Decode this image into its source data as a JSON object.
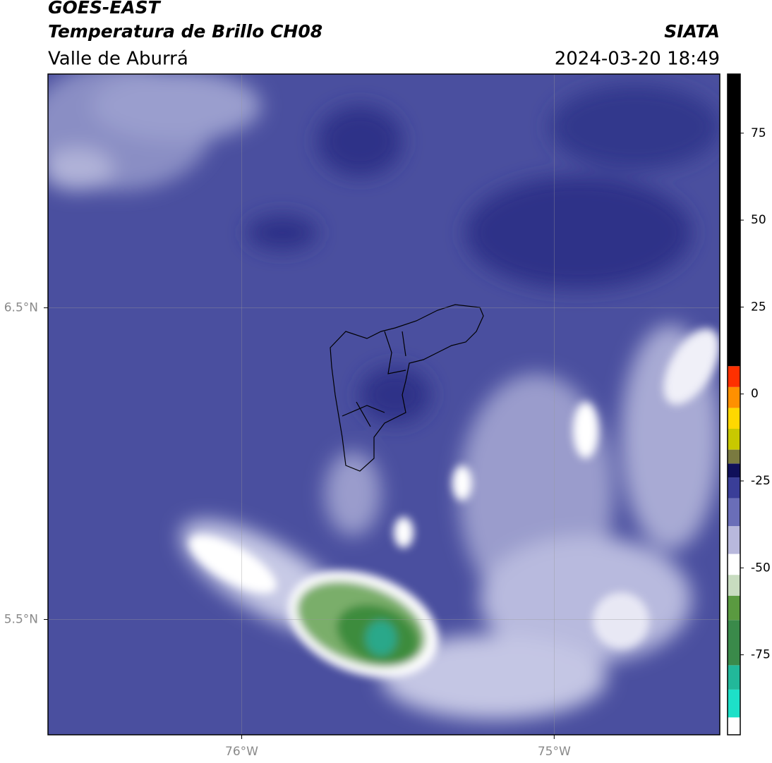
{
  "header": {
    "title": "GOES-EAST",
    "subtitle": "Temperatura de Brillo CH08",
    "region": "Valle de Aburrá",
    "source": "SIATA",
    "datetime": "2024-03-20 18:49"
  },
  "map": {
    "xlim": [
      -76.62,
      -74.47
    ],
    "ylim": [
      5.13,
      7.25
    ],
    "xticks": [
      {
        "value": -76,
        "label": "76°W"
      },
      {
        "value": -75,
        "label": "75°W"
      }
    ],
    "yticks": [
      {
        "value": 5.5,
        "label": "5.5°N"
      },
      {
        "value": 6.5,
        "label": "6.5°N"
      }
    ],
    "grid": true
  },
  "colorbar": {
    "lim": [
      -98,
      92
    ],
    "ticks": [
      -75,
      -50,
      -25,
      0,
      25,
      50,
      75
    ],
    "segments": [
      {
        "from": -98,
        "to": -93,
        "color": "#ffffff"
      },
      {
        "from": -93,
        "to": -85,
        "color": "#1de0c8"
      },
      {
        "from": -85,
        "to": -78,
        "color": "#22b89a"
      },
      {
        "from": -78,
        "to": -65,
        "color": "#3a8a4a"
      },
      {
        "from": -65,
        "to": -58,
        "color": "#5a9a40"
      },
      {
        "from": -58,
        "to": -52,
        "color": "#c8dcc0"
      },
      {
        "from": -52,
        "to": -46,
        "color": "#ffffff"
      },
      {
        "from": -46,
        "to": -38,
        "color": "#b8b8dc"
      },
      {
        "from": -38,
        "to": -30,
        "color": "#6a6eb8"
      },
      {
        "from": -30,
        "to": -24,
        "color": "#3a3e98"
      },
      {
        "from": -24,
        "to": -20,
        "color": "#10105a"
      },
      {
        "from": -20,
        "to": -16,
        "color": "#7a7a40"
      },
      {
        "from": -16,
        "to": -10,
        "color": "#c8c800"
      },
      {
        "from": -10,
        "to": -4,
        "color": "#ffd800"
      },
      {
        "from": -4,
        "to": 2,
        "color": "#ff9000"
      },
      {
        "from": 2,
        "to": 8,
        "color": "#ff3000"
      },
      {
        "from": 8,
        "to": 92,
        "color": "#000000"
      }
    ]
  }
}
